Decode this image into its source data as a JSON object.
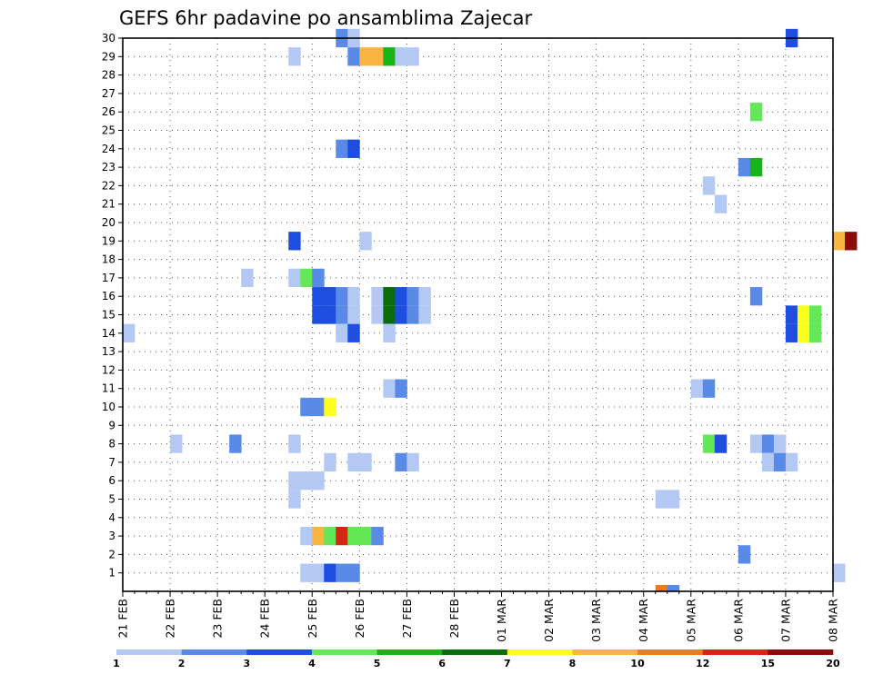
{
  "chart_data": {
    "type": "heatmap",
    "title": "GEFS 6hr padavine po ansamblima Zajecar",
    "xlabel": "",
    "ylabel": "",
    "x_tick_labels": [
      "21 FEB",
      "22 FEB",
      "23 FEB",
      "24 FEB",
      "25 FEB",
      "26 FEB",
      "27 FEB",
      "28 FEB",
      "01 MAR",
      "02 MAR",
      "03 MAR",
      "04 MAR",
      "05 MAR",
      "06 MAR",
      "07 MAR",
      "08 MAR"
    ],
    "y_tick_labels": [
      "1",
      "2",
      "3",
      "4",
      "5",
      "6",
      "7",
      "8",
      "9",
      "10",
      "11",
      "12",
      "13",
      "14",
      "15",
      "16",
      "17",
      "18",
      "19",
      "20",
      "21",
      "22",
      "23",
      "24",
      "25",
      "26",
      "27",
      "28",
      "29",
      "30"
    ],
    "ylim": [
      0,
      30
    ],
    "time_step_hours": 6,
    "grid": true,
    "colorbar": {
      "placement": "bottom",
      "tick_labels": [
        "1",
        "2",
        "3",
        "4",
        "5",
        "6",
        "7",
        "8",
        "10",
        "12",
        "15",
        "20"
      ],
      "colors": [
        "#b4c8f4",
        "#5a8ae8",
        "#1e4ee0",
        "#64e858",
        "#16b416",
        "#0a6c0a",
        "#ffff1e",
        "#fab440",
        "#f47a12",
        "#d82414",
        "#8c0c0c"
      ]
    },
    "cells": [
      {
        "member": 30,
        "step": 18,
        "level": 2
      },
      {
        "member": 30,
        "step": 19,
        "level": 1
      },
      {
        "member": 30,
        "step": 56,
        "level": 3
      },
      {
        "member": 29,
        "step": 14,
        "level": 1
      },
      {
        "member": 29,
        "step": 19,
        "level": 2
      },
      {
        "member": 29,
        "step": 20,
        "level": 8
      },
      {
        "member": 29,
        "step": 21,
        "level": 8
      },
      {
        "member": 29,
        "step": 22,
        "level": 5
      },
      {
        "member": 29,
        "step": 23,
        "level": 1
      },
      {
        "member": 29,
        "step": 24,
        "level": 1
      },
      {
        "member": 26,
        "step": 53,
        "level": 4
      },
      {
        "member": 24,
        "step": 18,
        "level": 2
      },
      {
        "member": 24,
        "step": 19,
        "level": 3
      },
      {
        "member": 23,
        "step": 52,
        "level": 2
      },
      {
        "member": 23,
        "step": 53,
        "level": 5
      },
      {
        "member": 22,
        "step": 49,
        "level": 1
      },
      {
        "member": 21,
        "step": 50,
        "level": 1
      },
      {
        "member": 19,
        "step": 14,
        "level": 3
      },
      {
        "member": 19,
        "step": 20,
        "level": 1
      },
      {
        "member": 19,
        "step": 60,
        "level": 8
      },
      {
        "member": 19,
        "step": 61,
        "level": 11
      },
      {
        "member": 17,
        "step": 10,
        "level": 1
      },
      {
        "member": 17,
        "step": 14,
        "level": 1
      },
      {
        "member": 17,
        "step": 15,
        "level": 4
      },
      {
        "member": 17,
        "step": 16,
        "level": 2
      },
      {
        "member": 16,
        "step": 16,
        "level": 3
      },
      {
        "member": 16,
        "step": 17,
        "level": 3
      },
      {
        "member": 16,
        "step": 18,
        "level": 2
      },
      {
        "member": 16,
        "step": 19,
        "level": 1
      },
      {
        "member": 16,
        "step": 21,
        "level": 1
      },
      {
        "member": 16,
        "step": 22,
        "level": 6
      },
      {
        "member": 16,
        "step": 23,
        "level": 3
      },
      {
        "member": 16,
        "step": 24,
        "level": 2
      },
      {
        "member": 16,
        "step": 25,
        "level": 1
      },
      {
        "member": 16,
        "step": 53,
        "level": 2
      },
      {
        "member": 15,
        "step": 16,
        "level": 3
      },
      {
        "member": 15,
        "step": 17,
        "level": 3
      },
      {
        "member": 15,
        "step": 18,
        "level": 2
      },
      {
        "member": 15,
        "step": 19,
        "level": 1
      },
      {
        "member": 15,
        "step": 21,
        "level": 1
      },
      {
        "member": 15,
        "step": 22,
        "level": 6
      },
      {
        "member": 15,
        "step": 23,
        "level": 3
      },
      {
        "member": 15,
        "step": 24,
        "level": 2
      },
      {
        "member": 15,
        "step": 25,
        "level": 1
      },
      {
        "member": 15,
        "step": 56,
        "level": 3
      },
      {
        "member": 15,
        "step": 57,
        "level": 7
      },
      {
        "member": 15,
        "step": 58,
        "level": 4
      },
      {
        "member": 14,
        "step": 0,
        "level": 1
      },
      {
        "member": 14,
        "step": 18,
        "level": 1
      },
      {
        "member": 14,
        "step": 19,
        "level": 3
      },
      {
        "member": 14,
        "step": 22,
        "level": 1
      },
      {
        "member": 14,
        "step": 56,
        "level": 3
      },
      {
        "member": 14,
        "step": 57,
        "level": 7
      },
      {
        "member": 14,
        "step": 58,
        "level": 4
      },
      {
        "member": 11,
        "step": 22,
        "level": 1
      },
      {
        "member": 11,
        "step": 23,
        "level": 2
      },
      {
        "member": 11,
        "step": 48,
        "level": 1
      },
      {
        "member": 11,
        "step": 49,
        "level": 2
      },
      {
        "member": 10,
        "step": 15,
        "level": 2
      },
      {
        "member": 10,
        "step": 16,
        "level": 2
      },
      {
        "member": 10,
        "step": 17,
        "level": 7
      },
      {
        "member": 8,
        "step": 4,
        "level": 1
      },
      {
        "member": 8,
        "step": 9,
        "level": 2
      },
      {
        "member": 8,
        "step": 14,
        "level": 1
      },
      {
        "member": 8,
        "step": 49,
        "level": 4
      },
      {
        "member": 8,
        "step": 50,
        "level": 3
      },
      {
        "member": 8,
        "step": 53,
        "level": 1
      },
      {
        "member": 8,
        "step": 54,
        "level": 2
      },
      {
        "member": 8,
        "step": 55,
        "level": 1
      },
      {
        "member": 7,
        "step": 17,
        "level": 1
      },
      {
        "member": 7,
        "step": 19,
        "level": 1
      },
      {
        "member": 7,
        "step": 20,
        "level": 1
      },
      {
        "member": 7,
        "step": 23,
        "level": 2
      },
      {
        "member": 7,
        "step": 24,
        "level": 1
      },
      {
        "member": 7,
        "step": 54,
        "level": 1
      },
      {
        "member": 7,
        "step": 55,
        "level": 2
      },
      {
        "member": 7,
        "step": 56,
        "level": 1
      },
      {
        "member": 6,
        "step": 14,
        "level": 1
      },
      {
        "member": 6,
        "step": 15,
        "level": 1
      },
      {
        "member": 6,
        "step": 16,
        "level": 1
      },
      {
        "member": 5,
        "step": 14,
        "level": 1
      },
      {
        "member": 5,
        "step": 45,
        "level": 1
      },
      {
        "member": 5,
        "step": 46,
        "level": 1
      },
      {
        "member": 3,
        "step": 15,
        "level": 1
      },
      {
        "member": 3,
        "step": 16,
        "level": 8
      },
      {
        "member": 3,
        "step": 17,
        "level": 4
      },
      {
        "member": 3,
        "step": 18,
        "level": 10
      },
      {
        "member": 3,
        "step": 19,
        "level": 4
      },
      {
        "member": 3,
        "step": 20,
        "level": 4
      },
      {
        "member": 3,
        "step": 21,
        "level": 2
      },
      {
        "member": 2,
        "step": 52,
        "level": 2
      },
      {
        "member": 1,
        "step": 15,
        "level": 1
      },
      {
        "member": 1,
        "step": 16,
        "level": 1
      },
      {
        "member": 1,
        "step": 17,
        "level": 3
      },
      {
        "member": 1,
        "step": 18,
        "level": 2
      },
      {
        "member": 1,
        "step": 19,
        "level": 2
      },
      {
        "member": 1,
        "step": 60,
        "level": 1
      },
      {
        "member": 0,
        "step": 45,
        "level": 9
      },
      {
        "member": 0,
        "step": 46,
        "level": 2
      }
    ]
  }
}
